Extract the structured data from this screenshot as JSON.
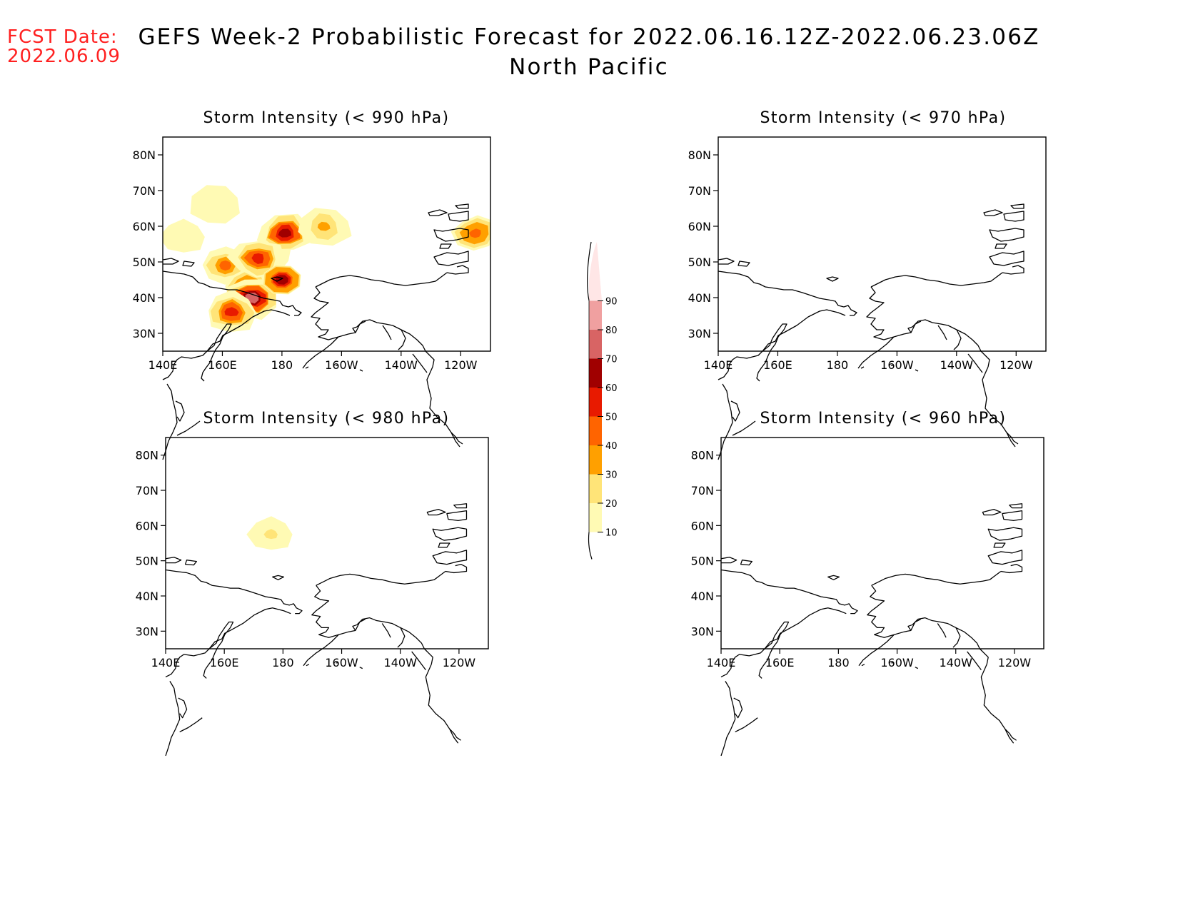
{
  "header": {
    "fcst_label": "FCST Date:",
    "fcst_date": "2022.06.09",
    "title_line1": "GEFS Week-2 Probabilistic Forecast for 2022.06.16.12Z-2022.06.23.06Z",
    "title_line2": "North Pacific"
  },
  "axes": {
    "lon_ticks": [
      {
        "value": 140,
        "label": "140E"
      },
      {
        "value": 160,
        "label": "160E"
      },
      {
        "value": 180,
        "label": "180"
      },
      {
        "value": 200,
        "label": "160W"
      },
      {
        "value": 220,
        "label": "140W"
      },
      {
        "value": 240,
        "label": "120W"
      }
    ],
    "lat_ticks": [
      {
        "value": 80,
        "label": "80N"
      },
      {
        "value": 70,
        "label": "70N"
      },
      {
        "value": 60,
        "label": "60N"
      },
      {
        "value": 50,
        "label": "50N"
      },
      {
        "value": 40,
        "label": "40N"
      },
      {
        "value": 30,
        "label": "30N"
      }
    ],
    "lon_range": [
      140,
      250
    ],
    "lat_range": [
      25,
      85
    ]
  },
  "colorbar": {
    "levels": [
      10,
      20,
      30,
      40,
      50,
      60,
      70,
      80,
      90
    ],
    "colors": [
      "#fffab4",
      "#ffe478",
      "#ffa000",
      "#ff6400",
      "#e81a00",
      "#a00000",
      "#d86464",
      "#f0a0a0",
      "#ffe6e6"
    ]
  },
  "panels": [
    {
      "title": "Storm Intensity (< 990 hPa)",
      "probability_areas": [
        {
          "lon": 147,
          "lat": 57,
          "level": 10
        },
        {
          "lon": 158,
          "lat": 66,
          "level": 10
        },
        {
          "lon": 165,
          "lat": 48,
          "level": 20
        },
        {
          "lon": 176,
          "lat": 52,
          "level": 20
        },
        {
          "lon": 161,
          "lat": 49,
          "level": 40
        },
        {
          "lon": 181,
          "lat": 58,
          "level": 60
        },
        {
          "lon": 168,
          "lat": 43,
          "level": 40
        },
        {
          "lon": 170,
          "lat": 40,
          "level": 70
        },
        {
          "lon": 172,
          "lat": 51,
          "level": 50
        },
        {
          "lon": 180,
          "lat": 45,
          "level": 60
        },
        {
          "lon": 163,
          "lat": 36,
          "level": 50
        },
        {
          "lon": 194,
          "lat": 60,
          "level": 30
        },
        {
          "lon": 245,
          "lat": 58,
          "level": 40
        }
      ]
    },
    {
      "title": "Storm Intensity (< 970 hPa)",
      "probability_areas": []
    },
    {
      "title": "Storm Intensity (< 980 hPa)",
      "probability_areas": [
        {
          "lon": 176,
          "lat": 57.5,
          "level": 20
        }
      ]
    },
    {
      "title": "Storm Intensity (< 960 hPa)",
      "probability_areas": []
    }
  ]
}
